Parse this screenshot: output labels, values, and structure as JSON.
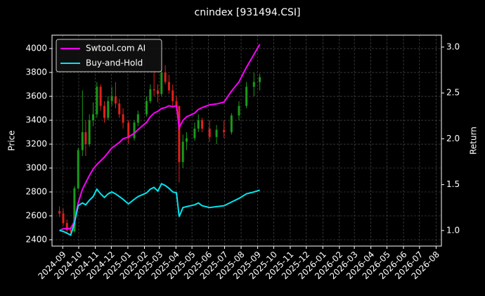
{
  "chart_data": {
    "type": "candlestick",
    "title": "cnindex [931494.CSI]",
    "ylabel": "Price",
    "y2label": "Return",
    "x": [
      "2024-08-26",
      "2024-09-02",
      "2024-09-09",
      "2024-09-16",
      "2024-09-23",
      "2024-09-30",
      "2024-10-08",
      "2024-10-14",
      "2024-10-21",
      "2024-10-28",
      "2024-11-04",
      "2024-11-11",
      "2024-11-18",
      "2024-11-25",
      "2024-12-02",
      "2024-12-09",
      "2024-12-16",
      "2024-12-23",
      "2025-01-02",
      "2025-01-13",
      "2025-01-20",
      "2025-02-05",
      "2025-02-12",
      "2025-02-19",
      "2025-02-26",
      "2025-03-05",
      "2025-03-12",
      "2025-03-19",
      "2025-03-26",
      "2025-04-02",
      "2025-04-07",
      "2025-04-14",
      "2025-04-21",
      "2025-05-06",
      "2025-05-13",
      "2025-05-20",
      "2025-06-03",
      "2025-06-16",
      "2025-06-30",
      "2025-07-14",
      "2025-07-28",
      "2025-08-11",
      "2025-08-25",
      "2025-09-05"
    ],
    "open": [
      2640,
      2620,
      2540,
      2480,
      2470,
      2830,
      3150,
      3300,
      3200,
      3400,
      3450,
      3680,
      3520,
      3420,
      3560,
      3600,
      3540,
      3450,
      3380,
      3250,
      3380,
      3450,
      3560,
      3660,
      3650,
      3620,
      3800,
      3720,
      3650,
      3560,
      3520,
      3050,
      3220,
      3250,
      3330,
      3400,
      3330,
      3260,
      3320,
      3300,
      3440,
      3520,
      3680,
      3720
    ],
    "high": [
      2680,
      2660,
      2570,
      2510,
      2850,
      3170,
      3650,
      3400,
      3450,
      3550,
      3720,
      3700,
      3560,
      3600,
      3680,
      3720,
      3580,
      3500,
      3400,
      3400,
      3480,
      3600,
      3700,
      3820,
      3700,
      3850,
      3860,
      3780,
      3700,
      3600,
      3520,
      3280,
      3300,
      3380,
      3450,
      3420,
      3400,
      3360,
      3400,
      3460,
      3560,
      3720,
      3800,
      3790
    ],
    "low": [
      2590,
      2520,
      2460,
      2430,
      2460,
      2820,
      3100,
      3100,
      3180,
      3350,
      3420,
      3480,
      3380,
      3400,
      3520,
      3500,
      3420,
      3330,
      3200,
      3230,
      3350,
      3430,
      3540,
      3600,
      3550,
      3600,
      3700,
      3620,
      3520,
      3500,
      2880,
      3000,
      3150,
      3230,
      3300,
      3300,
      3220,
      3200,
      3250,
      3280,
      3400,
      3500,
      3600,
      3650
    ],
    "close": [
      2620,
      2540,
      2480,
      2470,
      2830,
      3150,
      3300,
      3200,
      3400,
      3450,
      3680,
      3520,
      3420,
      3560,
      3600,
      3540,
      3450,
      3380,
      3250,
      3380,
      3450,
      3560,
      3660,
      3650,
      3620,
      3800,
      3720,
      3650,
      3560,
      3520,
      3050,
      3220,
      3250,
      3330,
      3400,
      3330,
      3260,
      3320,
      3300,
      3440,
      3520,
      3680,
      3720,
      3760
    ],
    "up_color": "#1a9a1a",
    "down_color": "#e0201a",
    "series": [
      {
        "name": "Swtool.com AI",
        "color": "#ff00ff",
        "axis": "y2",
        "values": [
          1.0,
          1.02,
          1.02,
          1.02,
          1.1,
          1.3,
          1.45,
          1.52,
          1.6,
          1.67,
          1.72,
          1.76,
          1.8,
          1.85,
          1.9,
          1.93,
          1.96,
          2.0,
          2.02,
          2.06,
          2.1,
          2.18,
          2.24,
          2.28,
          2.3,
          2.33,
          2.34,
          2.36,
          2.35,
          2.36,
          2.12,
          2.2,
          2.24,
          2.28,
          2.32,
          2.34,
          2.37,
          2.38,
          2.4,
          2.52,
          2.62,
          2.78,
          2.92,
          3.03
        ]
      },
      {
        "name": "Buy-and-Hold",
        "color": "#00e5ee",
        "axis": "y2",
        "values": [
          1.0,
          0.99,
          0.97,
          0.95,
          1.08,
          1.27,
          1.3,
          1.28,
          1.33,
          1.37,
          1.45,
          1.4,
          1.36,
          1.4,
          1.42,
          1.4,
          1.37,
          1.34,
          1.29,
          1.34,
          1.37,
          1.41,
          1.45,
          1.47,
          1.43,
          1.51,
          1.49,
          1.46,
          1.42,
          1.41,
          1.15,
          1.25,
          1.26,
          1.28,
          1.3,
          1.27,
          1.25,
          1.26,
          1.27,
          1.31,
          1.35,
          1.4,
          1.42,
          1.44
        ]
      }
    ],
    "xlim": [
      "2024-08-12",
      "2026-08-11"
    ],
    "xticks": [
      "2024-09",
      "2024-10",
      "2024-11",
      "2024-12",
      "2025-01",
      "2025-02",
      "2025-03",
      "2025-04",
      "2025-05",
      "2025-06",
      "2025-07",
      "2025-08",
      "2025-09",
      "2025-10",
      "2025-11",
      "2025-12",
      "2026-01",
      "2026-02",
      "2026-03",
      "2026-04",
      "2026-05",
      "2026-06",
      "2026-07",
      "2026-08"
    ],
    "ylim": [
      2347,
      4112
    ],
    "yticks": [
      2400,
      2600,
      2800,
      3000,
      3200,
      3400,
      3600,
      3800,
      4000
    ],
    "y2lim": [
      0.83,
      3.13
    ],
    "y2ticks": [
      {
        "value": 1.0,
        "label": "1.0"
      },
      {
        "value": 1.5,
        "label": "1.5"
      },
      {
        "value": 2.0,
        "label": "2.0"
      },
      {
        "value": 2.5,
        "label": "2.5"
      },
      {
        "value": 3.0,
        "label": "3.0"
      }
    ],
    "grid": true,
    "legend": "upper left"
  }
}
